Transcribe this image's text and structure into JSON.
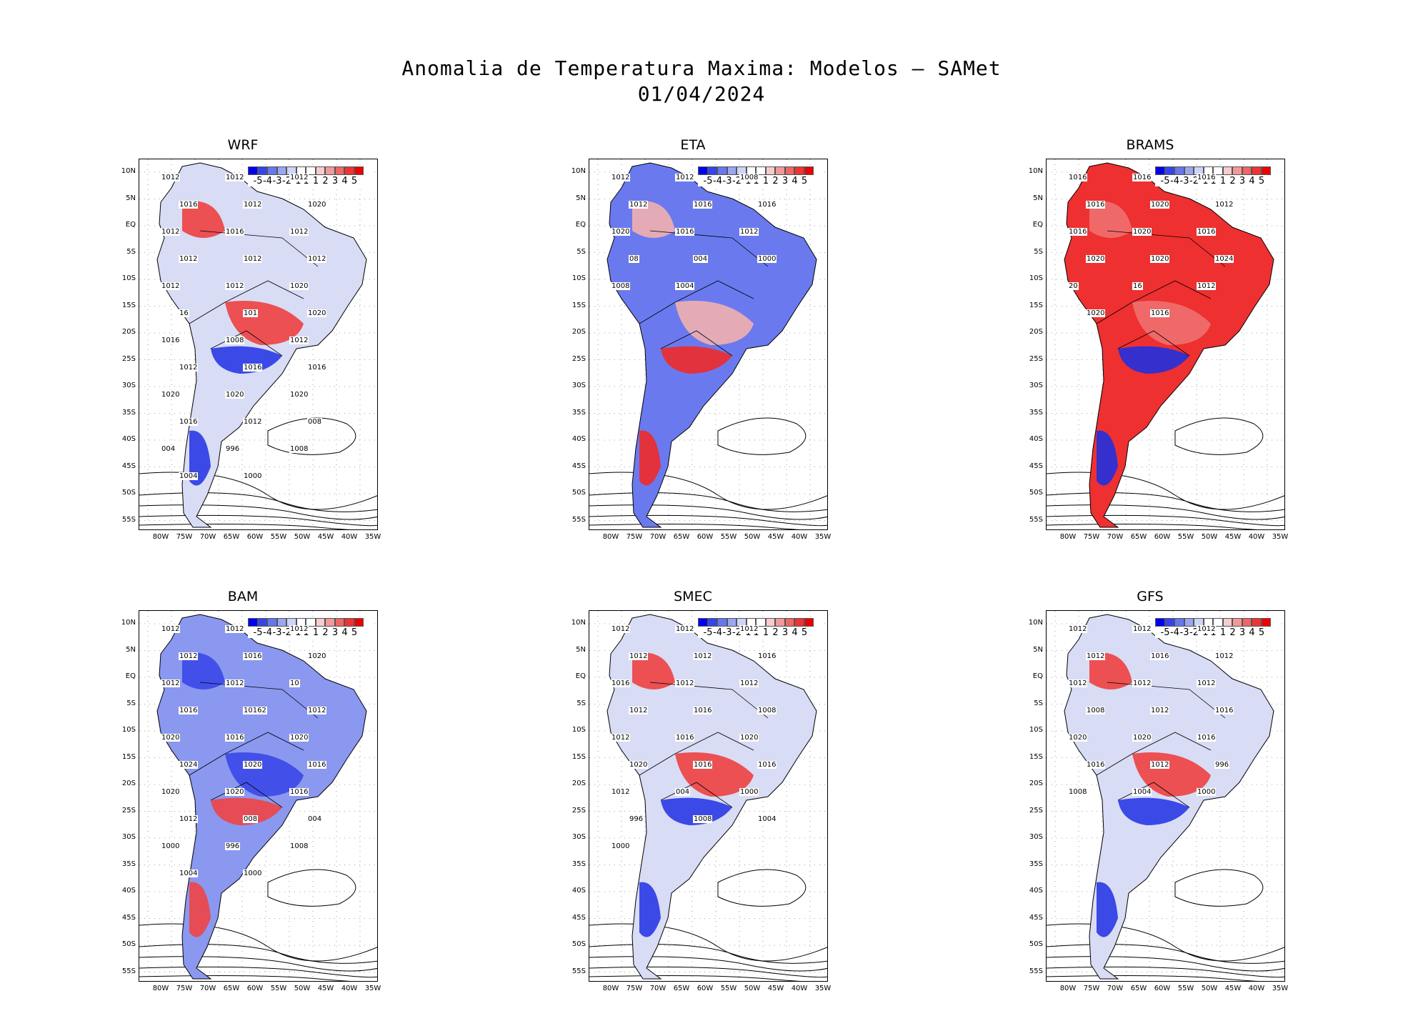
{
  "title": {
    "line1": "Anomalia de Temperatura Maxima: Modelos — SAMet",
    "line2": "01/04/2024"
  },
  "axes": {
    "lat_ticks": [
      "10N",
      "5N",
      "EQ",
      "5S",
      "10S",
      "15S",
      "20S",
      "25S",
      "30S",
      "35S",
      "40S",
      "45S",
      "50S",
      "55S"
    ],
    "lon_ticks": [
      "80W",
      "75W",
      "70W",
      "65W",
      "60W",
      "55W",
      "50W",
      "45W",
      "40W",
      "35W"
    ]
  },
  "colorbar": {
    "labels": [
      "-5",
      "-4",
      "-3",
      "-2",
      "-1",
      "1",
      "1",
      "2",
      "3",
      "4",
      "5"
    ],
    "colors": [
      "#0000ee",
      "#3344ee",
      "#6677ee",
      "#99a7f2",
      "#ccd4f8",
      "#ffffff",
      "#ffffff",
      "#f8cccc",
      "#f29999",
      "#ee6666",
      "#ee3333",
      "#ee0000"
    ]
  },
  "panels": [
    {
      "name": "WRF",
      "anomaly": "mixed",
      "isobars": [
        "1012",
        "1012",
        "1012",
        "1016",
        "1012",
        "1020",
        "1012",
        "1016",
        "1012",
        "1012",
        "1012",
        "1012",
        "1012",
        "1012",
        "1020",
        "16",
        "101",
        "1020",
        "1016",
        "1008",
        "1012",
        "1012",
        "1016",
        "1016",
        "1020",
        "1020",
        "1020",
        "1016",
        "1012",
        "008",
        "004",
        "996",
        "1008",
        "1004",
        "1000"
      ]
    },
    {
      "name": "ETA",
      "anomaly": "cool-north",
      "isobars": [
        "1012",
        "1012",
        "1008",
        "1012",
        "1016",
        "1016",
        "1020",
        "1016",
        "1012",
        "08",
        "004",
        "1000",
        "1008",
        "1004"
      ]
    },
    {
      "name": "BRAMS",
      "anomaly": "warm",
      "isobars": [
        "1016",
        "1016",
        "1016",
        "1016",
        "1020",
        "1012",
        "1016",
        "1020",
        "1016",
        "1020",
        "1020",
        "1024",
        "20",
        "16",
        "1012",
        "1020",
        "1016"
      ]
    },
    {
      "name": "BAM",
      "anomaly": "cool",
      "isobars": [
        "1012",
        "1012",
        "1012",
        "1012",
        "1016",
        "1020",
        "1012",
        "1012",
        "10",
        "1016",
        "10162",
        "1012",
        "1020",
        "1016",
        "1020",
        "1024",
        "1020",
        "1016",
        "1020",
        "1020",
        "1016",
        "1012",
        "008",
        "004",
        "1000",
        "996",
        "1008",
        "1004",
        "1000"
      ]
    },
    {
      "name": "SMEC",
      "anomaly": "mixed",
      "isobars": [
        "1012",
        "1012",
        "1012",
        "1012",
        "1012",
        "1016",
        "1016",
        "1012",
        "1012",
        "1012",
        "1016",
        "1008",
        "1012",
        "1016",
        "1020",
        "1020",
        "1016",
        "1016",
        "1012",
        "004",
        "1000",
        "996",
        "1008",
        "1004",
        "1000"
      ]
    },
    {
      "name": "GFS",
      "anomaly": "mixed",
      "isobars": [
        "1012",
        "1012",
        "1012",
        "1012",
        "1016",
        "1012",
        "1012",
        "1012",
        "1012",
        "1008",
        "1012",
        "1016",
        "1020",
        "1020",
        "1016",
        "1016",
        "1012",
        "996",
        "1008",
        "1004",
        "1000"
      ]
    }
  ]
}
